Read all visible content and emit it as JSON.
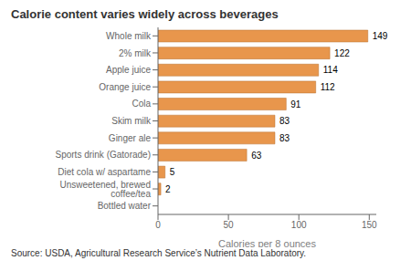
{
  "chart_data": {
    "type": "bar",
    "orientation": "horizontal",
    "title": "Calorie content varies widely across beverages",
    "categories": [
      "Bottled water",
      "Unsweetened, brewed coffee/tea",
      "Diet cola w/ aspartame",
      "Sports drink (Gatorade)",
      "Ginger ale",
      "Skim milk",
      "Cola",
      "Orange juice",
      "Apple juice",
      "2% milk",
      "Whole milk"
    ],
    "values": [
      0,
      2,
      5,
      63,
      83,
      83,
      91,
      112,
      114,
      122,
      149
    ],
    "color": "#E8964C",
    "xlabel": "Calories per 8 ounces",
    "xlim": [
      0,
      155
    ],
    "xticks": [
      0,
      50,
      100,
      150
    ],
    "grid": false,
    "data_labels": true,
    "annotations": [
      "Source: USDA, Agricultural Research Service’s Nutrient Data Laboratory."
    ]
  }
}
